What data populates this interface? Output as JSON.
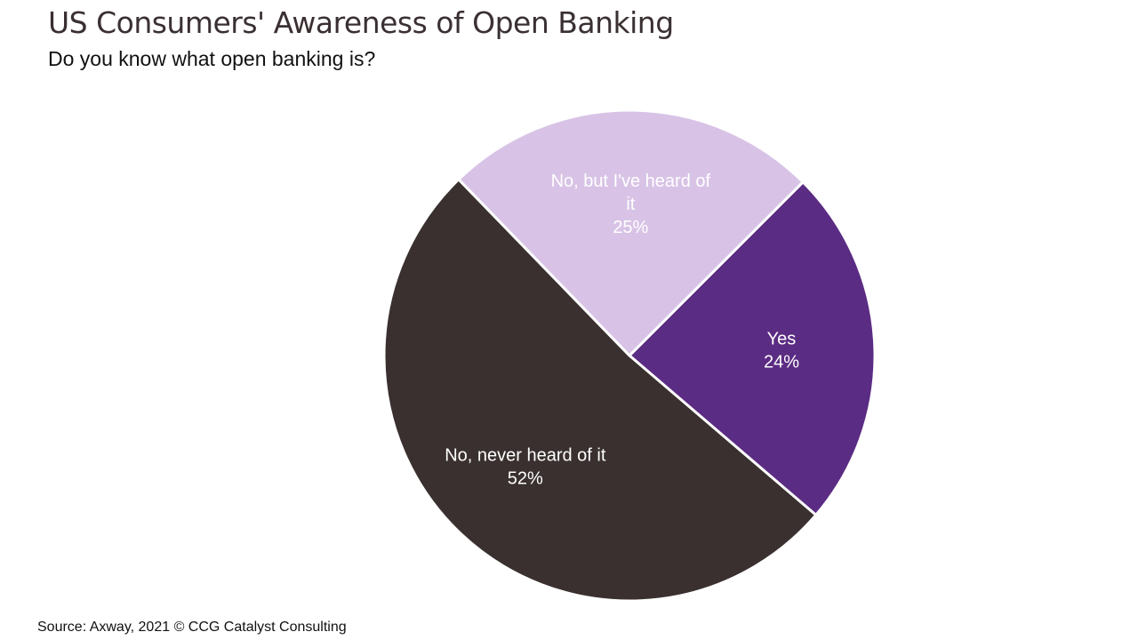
{
  "header": {
    "title": "US Consumers' Awareness of Open Banking",
    "subtitle": "Do you know what open banking is?"
  },
  "footer": {
    "source": "Source: Axway, 2021 © CCG Catalyst Consulting"
  },
  "chart_data": {
    "type": "pie",
    "title": "US Consumers' Awareness of Open Banking",
    "subtitle": "Do you know what open banking is?",
    "legend": "none",
    "slices": [
      {
        "label_lines": [
          "Yes"
        ],
        "value": 24,
        "value_label": "24%",
        "color": "#5b2c83"
      },
      {
        "label_lines": [
          "No, never heard of it"
        ],
        "value": 52,
        "value_label": "52%",
        "color": "#3a3030"
      },
      {
        "label_lines": [
          "No, but I've heard of",
          "it"
        ],
        "value": 25,
        "value_label": "25%",
        "color": "#d8c3e6"
      }
    ]
  }
}
